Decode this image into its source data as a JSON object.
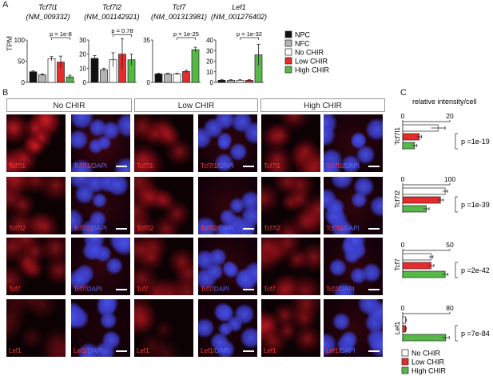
{
  "panel_labels": {
    "a": "A",
    "b": "B",
    "c": "C"
  },
  "panel_a": {
    "ylabel": "TPM",
    "legend": [
      {
        "label": "NPC",
        "color": "#111111"
      },
      {
        "label": "NFC",
        "color": "#b4b4b4"
      },
      {
        "label": "No CHIR",
        "color": "#ffffff"
      },
      {
        "label": "Low CHIR",
        "color": "#e82a2a"
      },
      {
        "label": "High CHIR",
        "color": "#55b847"
      }
    ]
  },
  "panel_b": {
    "conditions": [
      "No CHIR",
      "Low CHIR",
      "High CHIR"
    ],
    "rows": [
      {
        "gene": "Tcf7l1",
        "merge": "Tcf7l1/",
        "dapi": "DAPI"
      },
      {
        "gene": "Tcf7l2",
        "merge": "Tcf7l2/",
        "dapi": "DAPI"
      },
      {
        "gene": "Tcf7",
        "merge": "Tcf7/",
        "dapi": "DAPI"
      },
      {
        "gene": "Lef1",
        "merge": "Lef1/",
        "dapi": "DAPI"
      }
    ]
  },
  "panel_c": {
    "title": "relative intensity/cell",
    "legend": [
      {
        "label": "No CHIR",
        "color": "#ffffff"
      },
      {
        "label": "Low CHIR",
        "color": "#e82a2a"
      },
      {
        "label": "High CHIR",
        "color": "#55b847"
      }
    ]
  },
  "chart_data": [
    {
      "type": "bar",
      "panel": "A",
      "gene": "Tcf7l1",
      "accession": "(NM_009332)",
      "categories": [
        "NPC",
        "NFC",
        "No CHIR",
        "Low CHIR",
        "High CHIR"
      ],
      "values": [
        25,
        18,
        56,
        48,
        13
      ],
      "errors": [
        2,
        2,
        5,
        14,
        4
      ],
      "ylim": [
        0,
        100
      ],
      "yticks": [
        0,
        50,
        100
      ],
      "annotation": {
        "text": "p = 1e-8",
        "from": 2,
        "to": 4
      }
    },
    {
      "type": "bar",
      "panel": "A",
      "gene": "Tcf7l2",
      "accession": "(NM_001142921)",
      "categories": [
        "NPC",
        "NFC",
        "No CHIR",
        "Low CHIR",
        "High CHIR"
      ],
      "values": [
        17,
        9,
        16,
        20,
        16
      ],
      "errors": [
        2,
        1,
        5,
        11,
        4
      ],
      "ylim": [
        0,
        30
      ],
      "yticks": [
        0,
        10,
        20,
        30
      ],
      "annotation": {
        "text": "p = 0.78",
        "from": 2,
        "to": 4
      }
    },
    {
      "type": "bar",
      "panel": "A",
      "gene": "Tcf7",
      "accession": "(NM_001313981)",
      "categories": [
        "NPC",
        "NFC",
        "No CHIR",
        "Low CHIR",
        "High CHIR"
      ],
      "values": [
        7,
        7,
        7,
        9,
        27
      ],
      "errors": [
        0.5,
        0.5,
        0.5,
        1,
        2
      ],
      "ylim": [
        0,
        35
      ],
      "yticks": [
        0,
        35
      ],
      "annotation": {
        "text": "p = 1e-25",
        "from": 2,
        "to": 4
      }
    },
    {
      "type": "bar",
      "panel": "A",
      "gene": "Lef1",
      "accession": "(NM_001276402)",
      "categories": [
        "NPC",
        "NFC",
        "No CHIR",
        "Low CHIR",
        "High CHIR"
      ],
      "values": [
        2,
        2,
        2,
        2,
        26
      ],
      "errors": [
        0.5,
        0.5,
        0.5,
        0.5,
        10
      ],
      "ylim": [
        0,
        40
      ],
      "yticks": [
        0,
        10,
        20,
        30,
        40
      ],
      "annotation": {
        "text": "p = 1e-32",
        "from": 2,
        "to": 4
      }
    },
    {
      "type": "bar",
      "panel": "C",
      "orientation": "horizontal",
      "gene": "Tcf7l1",
      "categories": [
        "No CHIR",
        "Low CHIR",
        "High CHIR"
      ],
      "values": [
        15,
        7,
        5
      ],
      "errors": [
        3,
        1,
        1
      ],
      "xlim": [
        0,
        20
      ],
      "xticks": [
        0,
        20
      ],
      "annotation": "p =1e-19"
    },
    {
      "type": "bar",
      "panel": "C",
      "orientation": "horizontal",
      "gene": "Tcf7l2",
      "categories": [
        "No CHIR",
        "Low CHIR",
        "High CHIR"
      ],
      "values": [
        90,
        80,
        50
      ],
      "errors": [
        5,
        6,
        6
      ],
      "xlim": [
        0,
        100
      ],
      "xticks": [
        0,
        100
      ],
      "annotation": "p =1e-39"
    },
    {
      "type": "bar",
      "panel": "C",
      "orientation": "horizontal",
      "gene": "Tcf7",
      "categories": [
        "No CHIR",
        "Low CHIR",
        "High CHIR"
      ],
      "values": [
        30,
        30,
        45
      ],
      "errors": [
        2,
        3,
        3
      ],
      "xlim": [
        0,
        50
      ],
      "xticks": [
        0,
        50
      ],
      "annotation": "p =2e-42"
    },
    {
      "type": "bar",
      "panel": "C",
      "orientation": "horizontal",
      "gene": "Lef1",
      "categories": [
        "No CHIR",
        "Low CHIR",
        "High CHIR"
      ],
      "values": [
        5,
        5,
        73
      ],
      "errors": [
        1,
        1,
        6
      ],
      "xlim": [
        0,
        80
      ],
      "xticks": [
        0,
        80
      ],
      "annotation": "p =7e-84"
    }
  ]
}
